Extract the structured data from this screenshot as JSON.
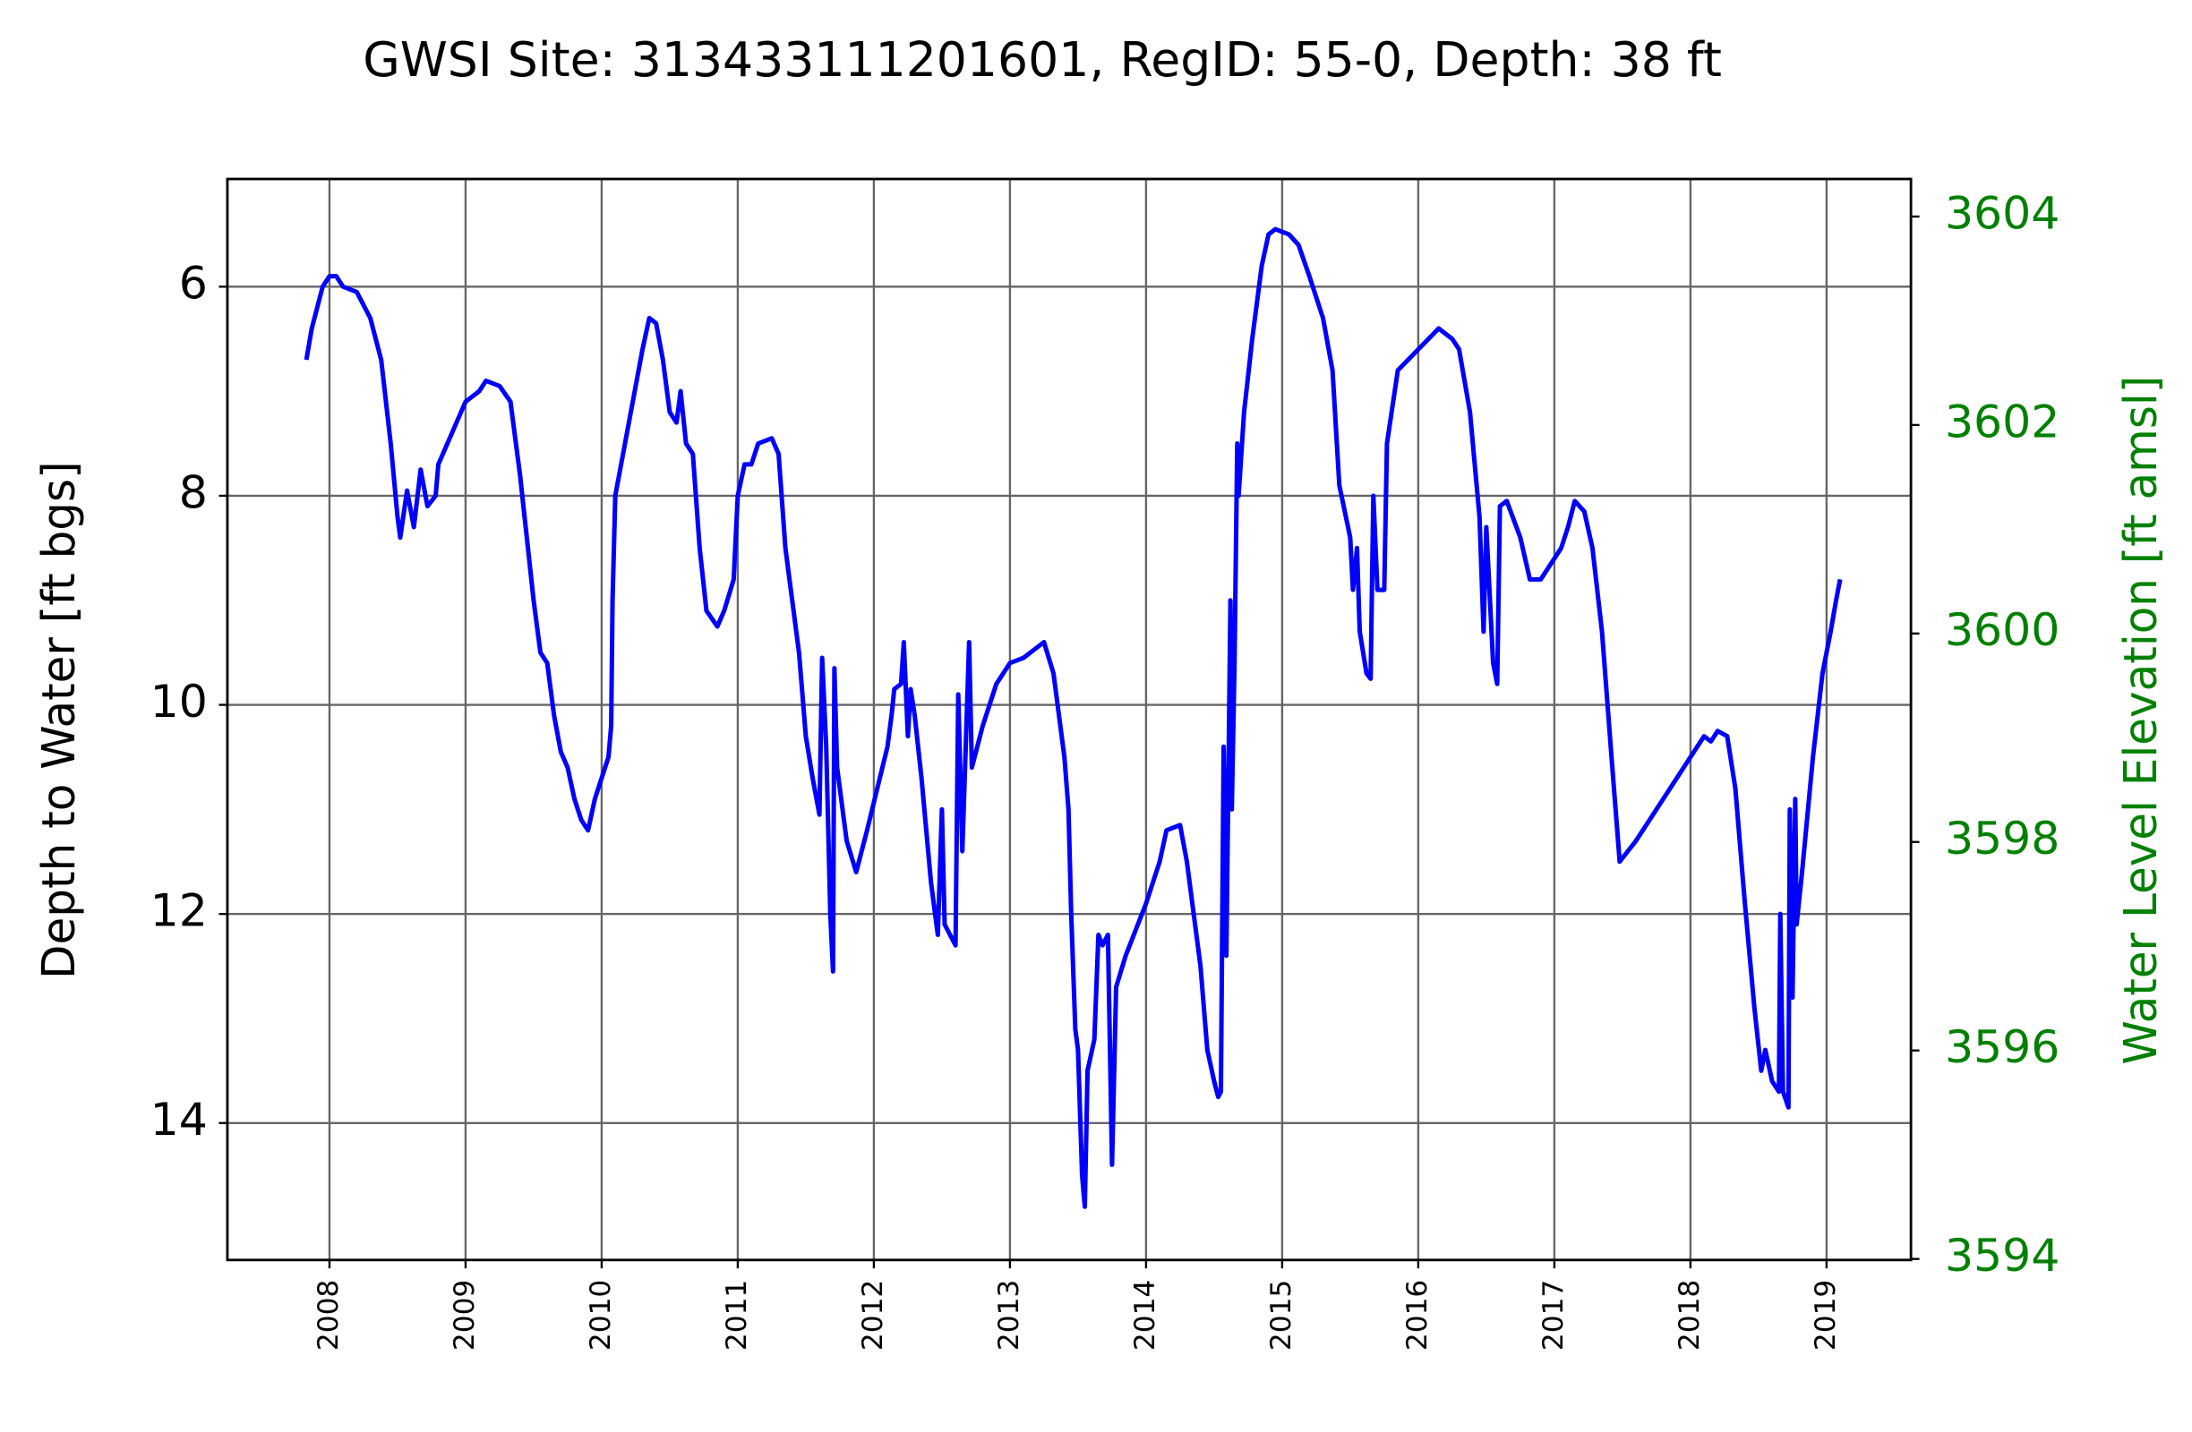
{
  "chart_data": {
    "type": "line",
    "title": "GWSI Site: 313433111201601, RegID: 55-0, Depth: 38 ft",
    "ylabel": "Depth to Water [ft bgs]",
    "y2label": "Water Level Elevation [ft amsl]",
    "y2color": "green",
    "grid": true,
    "xlim": [
      2007.25,
      2019.62
    ],
    "xticks": [
      2008,
      2009,
      2010,
      2011,
      2012,
      2013,
      2014,
      2015,
      2016,
      2017,
      2018,
      2019
    ],
    "ylim": [
      15.31,
      4.97
    ],
    "yticks": [
      6,
      8,
      10,
      12,
      14
    ],
    "y2lim": [
      3593.99,
      3604.36
    ],
    "y2ticks": [
      3594,
      3596,
      3598,
      3600,
      3602,
      3604
    ],
    "x": [
      2007.83,
      2007.87,
      2007.95,
      2008.0,
      2008.05,
      2008.1,
      2008.2,
      2008.3,
      2008.38,
      2008.45,
      2008.5,
      2008.52,
      2008.57,
      2008.62,
      2008.67,
      2008.72,
      2008.78,
      2008.8,
      2008.9,
      2009.0,
      2009.1,
      2009.15,
      2009.25,
      2009.33,
      2009.4,
      2009.5,
      2009.55,
      2009.6,
      2009.65,
      2009.7,
      2009.75,
      2009.8,
      2009.85,
      2009.9,
      2009.95,
      2010.05,
      2010.07,
      2010.08,
      2010.1,
      2010.2,
      2010.3,
      2010.35,
      2010.4,
      2010.45,
      2010.5,
      2010.55,
      2010.58,
      2010.62,
      2010.67,
      2010.72,
      2010.77,
      2010.85,
      2010.9,
      2010.97,
      2011.0,
      2011.05,
      2011.1,
      2011.15,
      2011.25,
      2011.3,
      2011.35,
      2011.45,
      2011.5,
      2011.55,
      2011.6,
      2011.62,
      2011.65,
      2011.68,
      2011.7,
      2011.71,
      2011.73,
      2011.8,
      2011.87,
      2011.95,
      2012.1,
      2012.13,
      2012.15,
      2012.2,
      2012.22,
      2012.25,
      2012.27,
      2012.3,
      2012.35,
      2012.42,
      2012.47,
      2012.5,
      2012.52,
      2012.6,
      2012.62,
      2012.65,
      2012.7,
      2012.72,
      2012.8,
      2012.9,
      2013.0,
      2013.1,
      2013.2,
      2013.25,
      2013.32,
      2013.4,
      2013.43,
      2013.45,
      2013.48,
      2013.5,
      2013.53,
      2013.55,
      2013.57,
      2013.62,
      2013.65,
      2013.68,
      2013.72,
      2013.75,
      2013.78,
      2013.85,
      2014.0,
      2014.1,
      2014.15,
      2014.25,
      2014.3,
      2014.4,
      2014.45,
      2014.5,
      2014.53,
      2014.55,
      2014.57,
      2014.59,
      2014.62,
      2014.63,
      2014.65,
      2014.67,
      2014.68,
      2014.72,
      2014.78,
      2014.85,
      2014.9,
      2014.95,
      2015.05,
      2015.12,
      2015.2,
      2015.3,
      2015.37,
      2015.42,
      2015.5,
      2015.52,
      2015.55,
      2015.57,
      2015.62,
      2015.65,
      2015.67,
      2015.7,
      2015.75,
      2015.77,
      2015.85,
      2016.0,
      2016.15,
      2016.25,
      2016.3,
      2016.38,
      2016.45,
      2016.48,
      2016.5,
      2016.55,
      2016.58,
      2016.6,
      2016.65,
      2016.75,
      2016.82,
      2016.9,
      2017.05,
      2017.1,
      2017.15,
      2017.22,
      2017.28,
      2017.35,
      2017.42,
      2017.48,
      2017.6,
      2017.8,
      2018.0,
      2018.1,
      2018.15,
      2018.2,
      2018.27,
      2018.33,
      2018.4,
      2018.47,
      2018.52,
      2018.55,
      2018.6,
      2018.65,
      2018.66,
      2018.68,
      2018.72,
      2018.73,
      2018.75,
      2018.77,
      2018.78,
      2018.82,
      2018.9,
      2018.97,
      2019.03,
      2019.07,
      2019.1
    ],
    "series": [
      {
        "color": "blue",
        "values": [
          6.7,
          6.4,
          6.0,
          5.9,
          5.9,
          6.0,
          6.05,
          6.3,
          6.7,
          7.5,
          8.2,
          8.4,
          7.95,
          8.3,
          7.75,
          8.1,
          8.0,
          7.7,
          7.4,
          7.1,
          7.0,
          6.9,
          6.95,
          7.1,
          7.8,
          9.0,
          9.5,
          9.6,
          10.1,
          10.45,
          10.6,
          10.9,
          11.1,
          11.2,
          10.9,
          10.5,
          10.2,
          9.0,
          8.0,
          7.3,
          6.6,
          6.3,
          6.35,
          6.7,
          7.2,
          7.3,
          7.0,
          7.5,
          7.6,
          8.5,
          9.1,
          9.25,
          9.1,
          8.8,
          8.0,
          7.7,
          7.7,
          7.5,
          7.45,
          7.6,
          8.5,
          9.5,
          10.3,
          10.7,
          11.05,
          9.55,
          10.4,
          12.0,
          12.55,
          9.65,
          10.6,
          11.3,
          11.6,
          11.2,
          10.4,
          10.1,
          9.85,
          9.8,
          9.4,
          10.3,
          9.85,
          10.1,
          10.7,
          11.7,
          12.2,
          11.0,
          12.1,
          12.3,
          9.9,
          11.4,
          9.4,
          10.6,
          10.2,
          9.8,
          9.6,
          9.55,
          9.45,
          9.4,
          9.7,
          10.5,
          11.0,
          12.0,
          13.1,
          13.3,
          14.5,
          14.8,
          13.5,
          13.2,
          12.2,
          12.3,
          12.2,
          14.4,
          12.7,
          12.4,
          11.9,
          11.5,
          11.2,
          11.15,
          11.5,
          12.5,
          13.3,
          13.6,
          13.75,
          13.7,
          10.4,
          12.4,
          9.0,
          11.0,
          9.6,
          7.5,
          8.0,
          7.2,
          6.5,
          5.8,
          5.5,
          5.45,
          5.5,
          5.6,
          5.9,
          6.3,
          6.8,
          7.9,
          8.4,
          8.9,
          8.5,
          9.3,
          9.7,
          9.75,
          8.0,
          8.9,
          8.9,
          7.5,
          6.8,
          6.6,
          6.4,
          6.5,
          6.6,
          7.2,
          8.2,
          9.3,
          8.3,
          9.6,
          9.8,
          8.1,
          8.05,
          8.4,
          8.8,
          8.8,
          8.5,
          8.3,
          8.05,
          8.15,
          8.5,
          9.3,
          10.5,
          11.5,
          11.3,
          10.9,
          10.5,
          10.3,
          10.35,
          10.25,
          10.3,
          10.8,
          11.9,
          12.9,
          13.5,
          13.3,
          13.6,
          13.7,
          12.0,
          13.7,
          13.85,
          11.0,
          12.8,
          10.9,
          12.1,
          11.6,
          10.5,
          9.7,
          9.3,
          9.0,
          8.8
        ]
      }
    ]
  }
}
